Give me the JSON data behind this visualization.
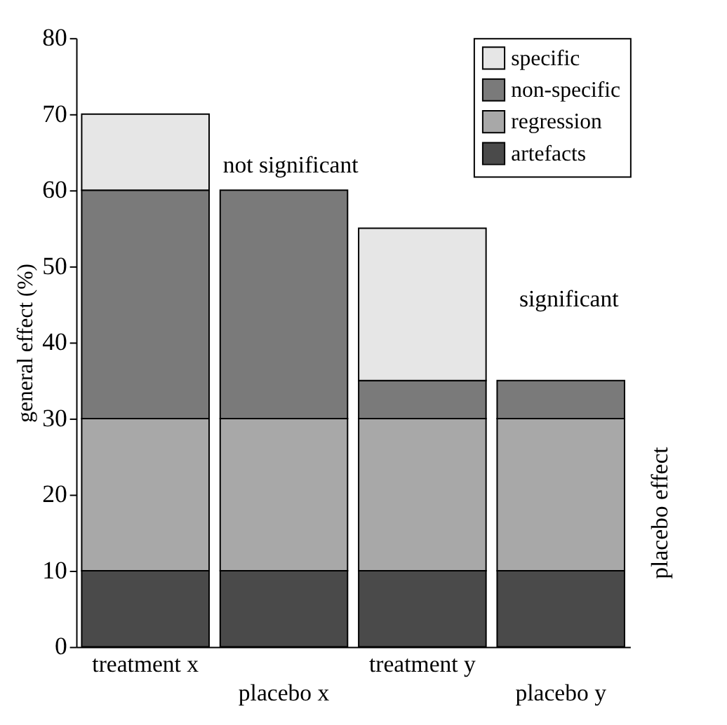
{
  "chart_data": {
    "type": "bar",
    "stacked": true,
    "ylabel": "general effect (%)",
    "categories": [
      "treatment x",
      "placebo x",
      "treatment y",
      "placebo y"
    ],
    "series": [
      {
        "name": "artefacts",
        "color": "#4a4a4a",
        "values": [
          10,
          10,
          10,
          10
        ]
      },
      {
        "name": "regression",
        "color": "#a8a8a8",
        "values": [
          20,
          20,
          20,
          20
        ]
      },
      {
        "name": "non-specific",
        "color": "#7a7a7a",
        "values": [
          30,
          30,
          5,
          5
        ]
      },
      {
        "name": "specific",
        "color": "#e6e6e6",
        "values": [
          10,
          null,
          20,
          null
        ]
      }
    ],
    "ylim": [
      0,
      80
    ],
    "yticks": [
      0,
      10,
      20,
      30,
      40,
      50,
      60,
      70,
      80
    ],
    "grid": false,
    "legend": "top right",
    "annotations": [
      "not significant",
      "significant",
      "placebo effect"
    ]
  }
}
